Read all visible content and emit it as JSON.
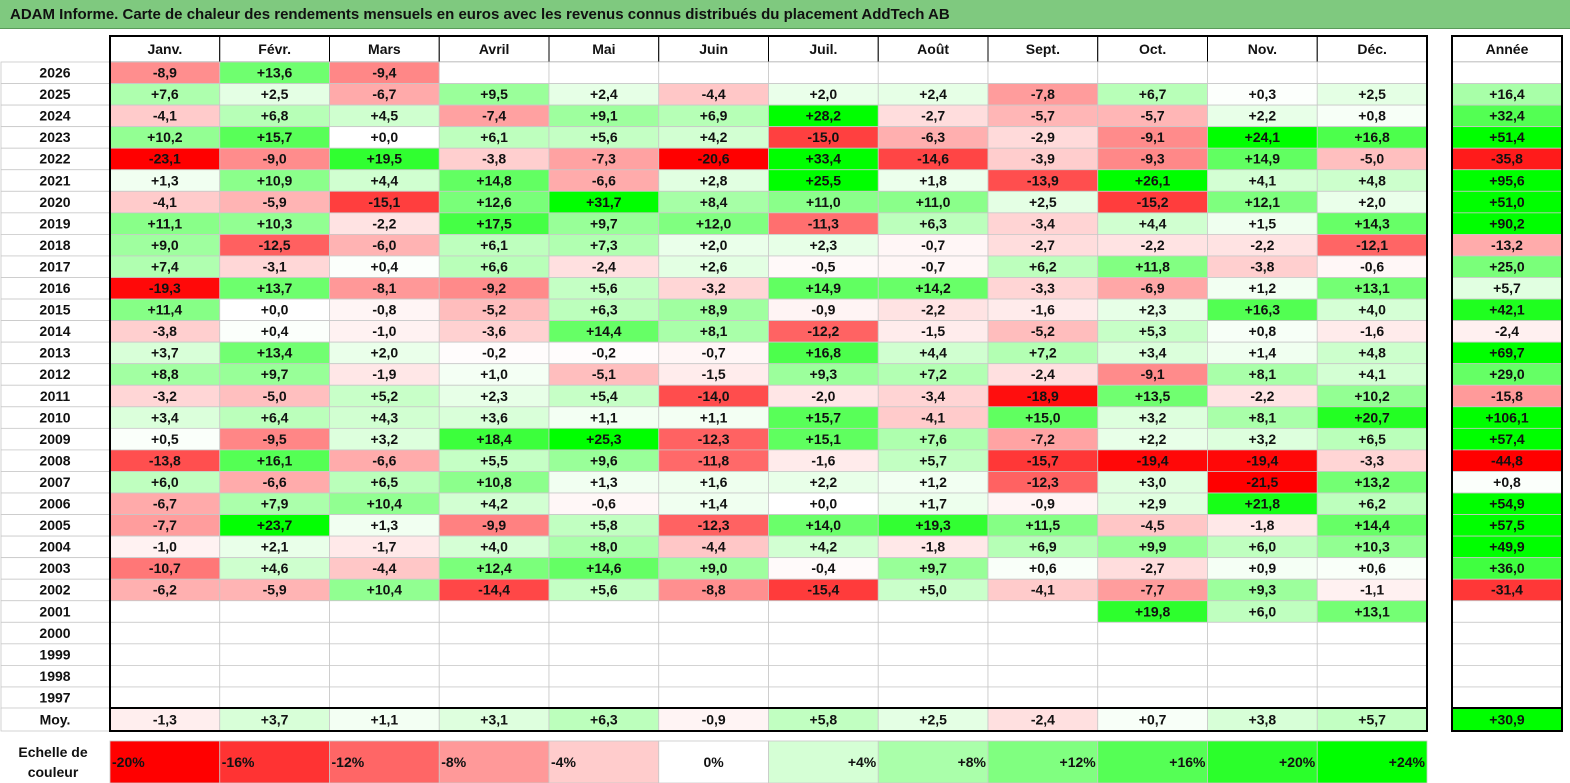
{
  "title": "ADAM Informe. Carte de chaleur des rendements mensuels en euros avec les revenus connus distribués du placement AddTech AB",
  "chart_data": {
    "type": "heatmap",
    "columns": [
      "Janv.",
      "Févr.",
      "Mars",
      "Avril",
      "Mai",
      "Juin",
      "Juil.",
      "Août",
      "Sept.",
      "Oct.",
      "Nov.",
      "Déc."
    ],
    "year_column_label": "Année",
    "rows": [
      {
        "year": "2026",
        "months": [
          "-8,9",
          "+13,6",
          "-9,4",
          null,
          null,
          null,
          null,
          null,
          null,
          null,
          null,
          null
        ],
        "annual": null
      },
      {
        "year": "2025",
        "months": [
          "+7,6",
          "+2,5",
          "-6,7",
          "+9,5",
          "+2,4",
          "-4,4",
          "+2,0",
          "+2,4",
          "-7,8",
          "+6,7",
          "+0,3",
          "+2,5"
        ],
        "annual": "+16,4"
      },
      {
        "year": "2024",
        "months": [
          "-4,1",
          "+6,8",
          "+4,5",
          "-7,4",
          "+9,1",
          "+6,9",
          "+28,2",
          "-2,7",
          "-5,7",
          "-5,7",
          "+2,2",
          "+0,8"
        ],
        "annual": "+32,4"
      },
      {
        "year": "2023",
        "months": [
          "+10,2",
          "+15,7",
          "+0,0",
          "+6,1",
          "+5,6",
          "+4,2",
          "-15,0",
          "-6,3",
          "-2,9",
          "-9,1",
          "+24,1",
          "+16,8"
        ],
        "annual": "+51,4"
      },
      {
        "year": "2022",
        "months": [
          "-23,1",
          "-9,0",
          "+19,5",
          "-3,8",
          "-7,3",
          "-20,6",
          "+33,4",
          "-14,6",
          "-3,9",
          "-9,3",
          "+14,9",
          "-5,0"
        ],
        "annual": "-35,8"
      },
      {
        "year": "2021",
        "months": [
          "+1,3",
          "+10,9",
          "+4,4",
          "+14,8",
          "-6,6",
          "+2,8",
          "+25,5",
          "+1,8",
          "-13,9",
          "+26,1",
          "+4,1",
          "+4,8"
        ],
        "annual": "+95,6"
      },
      {
        "year": "2020",
        "months": [
          "-4,1",
          "-5,9",
          "-15,1",
          "+12,6",
          "+31,7",
          "+8,4",
          "+11,0",
          "+11,0",
          "+2,5",
          "-15,2",
          "+12,1",
          "+2,0"
        ],
        "annual": "+51,0"
      },
      {
        "year": "2019",
        "months": [
          "+11,1",
          "+10,3",
          "-2,2",
          "+17,5",
          "+9,7",
          "+12,0",
          "-11,3",
          "+6,3",
          "-3,4",
          "+4,4",
          "+1,5",
          "+14,3"
        ],
        "annual": "+90,2"
      },
      {
        "year": "2018",
        "months": [
          "+9,0",
          "-12,5",
          "-6,0",
          "+6,1",
          "+7,3",
          "+2,0",
          "+2,3",
          "-0,7",
          "-2,7",
          "-2,2",
          "-2,2",
          "-12,1"
        ],
        "annual": "-13,2"
      },
      {
        "year": "2017",
        "months": [
          "+7,4",
          "-3,1",
          "+0,4",
          "+6,6",
          "-2,4",
          "+2,6",
          "-0,5",
          "-0,7",
          "+6,2",
          "+11,8",
          "-3,8",
          "-0,6"
        ],
        "annual": "+25,0"
      },
      {
        "year": "2016",
        "months": [
          "-19,3",
          "+13,7",
          "-8,1",
          "-9,2",
          "+5,6",
          "-3,2",
          "+14,9",
          "+14,2",
          "-3,3",
          "-6,9",
          "+1,2",
          "+13,1"
        ],
        "annual": "+5,7"
      },
      {
        "year": "2015",
        "months": [
          "+11,4",
          "+0,0",
          "-0,8",
          "-5,2",
          "+6,3",
          "+8,9",
          "-0,9",
          "-2,2",
          "-1,6",
          "+2,3",
          "+16,3",
          "+4,0"
        ],
        "annual": "+42,1"
      },
      {
        "year": "2014",
        "months": [
          "-3,8",
          "+0,4",
          "-1,0",
          "-3,6",
          "+14,4",
          "+8,1",
          "-12,2",
          "-1,5",
          "-5,2",
          "+5,3",
          "+0,8",
          "-1,6"
        ],
        "annual": "-2,4"
      },
      {
        "year": "2013",
        "months": [
          "+3,7",
          "+13,4",
          "+2,0",
          "-0,2",
          "-0,2",
          "-0,7",
          "+16,8",
          "+4,4",
          "+7,2",
          "+3,4",
          "+1,4",
          "+4,8"
        ],
        "annual": "+69,7"
      },
      {
        "year": "2012",
        "months": [
          "+8,8",
          "+9,7",
          "-1,9",
          "+1,0",
          "-5,1",
          "-1,5",
          "+9,3",
          "+7,2",
          "-2,4",
          "-9,1",
          "+8,1",
          "+4,1"
        ],
        "annual": "+29,0"
      },
      {
        "year": "2011",
        "months": [
          "-3,2",
          "-5,0",
          "+5,2",
          "+2,3",
          "+5,4",
          "-14,0",
          "-2,0",
          "-3,4",
          "-18,9",
          "+13,5",
          "-2,2",
          "+10,2"
        ],
        "annual": "-15,8"
      },
      {
        "year": "2010",
        "months": [
          "+3,4",
          "+6,4",
          "+4,3",
          "+3,6",
          "+1,1",
          "+1,1",
          "+15,7",
          "-4,1",
          "+15,0",
          "+3,2",
          "+8,1",
          "+20,7"
        ],
        "annual": "+106,1"
      },
      {
        "year": "2009",
        "months": [
          "+0,5",
          "-9,5",
          "+3,2",
          "+18,4",
          "+25,3",
          "-12,3",
          "+15,1",
          "+7,6",
          "-7,2",
          "+2,2",
          "+3,2",
          "+6,5"
        ],
        "annual": "+57,4"
      },
      {
        "year": "2008",
        "months": [
          "-13,8",
          "+16,1",
          "-6,6",
          "+5,5",
          "+9,6",
          "-11,8",
          "-1,6",
          "+5,7",
          "-15,7",
          "-19,4",
          "-19,4",
          "-3,3"
        ],
        "annual": "-44,8"
      },
      {
        "year": "2007",
        "months": [
          "+6,0",
          "-6,6",
          "+6,5",
          "+10,8",
          "+1,3",
          "+1,6",
          "+2,2",
          "+1,2",
          "-12,3",
          "+3,0",
          "-21,5",
          "+13,2"
        ],
        "annual": "+0,8"
      },
      {
        "year": "2006",
        "months": [
          "-6,7",
          "+7,9",
          "+10,4",
          "+4,2",
          "-0,6",
          "+1,4",
          "+0,0",
          "+1,7",
          "-0,9",
          "+2,9",
          "+21,8",
          "+6,2"
        ],
        "annual": "+54,9"
      },
      {
        "year": "2005",
        "months": [
          "-7,7",
          "+23,7",
          "+1,3",
          "-9,9",
          "+5,8",
          "-12,3",
          "+14,0",
          "+19,3",
          "+11,5",
          "-4,5",
          "-1,8",
          "+14,4"
        ],
        "annual": "+57,5"
      },
      {
        "year": "2004",
        "months": [
          "-1,0",
          "+2,1",
          "-1,7",
          "+4,0",
          "+8,0",
          "-4,4",
          "+4,2",
          "-1,8",
          "+6,9",
          "+9,9",
          "+6,0",
          "+10,3"
        ],
        "annual": "+49,9"
      },
      {
        "year": "2003",
        "months": [
          "-10,7",
          "+4,6",
          "-4,4",
          "+12,4",
          "+14,6",
          "+9,0",
          "-0,4",
          "+9,7",
          "+0,6",
          "-2,7",
          "+0,9",
          "+0,6"
        ],
        "annual": "+36,0"
      },
      {
        "year": "2002",
        "months": [
          "-6,2",
          "-5,9",
          "+10,4",
          "-14,4",
          "+5,6",
          "-8,8",
          "-15,4",
          "+5,0",
          "-4,1",
          "-7,7",
          "+9,3",
          "-1,1"
        ],
        "annual": "-31,4"
      },
      {
        "year": "2001",
        "months": [
          null,
          null,
          null,
          null,
          null,
          null,
          null,
          null,
          null,
          "+19,8",
          "+6,0",
          "+13,1"
        ],
        "annual": null
      },
      {
        "year": "2000",
        "months": [
          null,
          null,
          null,
          null,
          null,
          null,
          null,
          null,
          null,
          null,
          null,
          null
        ],
        "annual": null
      },
      {
        "year": "1999",
        "months": [
          null,
          null,
          null,
          null,
          null,
          null,
          null,
          null,
          null,
          null,
          null,
          null
        ],
        "annual": null
      },
      {
        "year": "1998",
        "months": [
          null,
          null,
          null,
          null,
          null,
          null,
          null,
          null,
          null,
          null,
          null,
          null
        ],
        "annual": null
      },
      {
        "year": "1997",
        "months": [
          null,
          null,
          null,
          null,
          null,
          null,
          null,
          null,
          null,
          null,
          null,
          null
        ],
        "annual": null
      }
    ],
    "average": {
      "label": "Moy.",
      "months": [
        "-1,3",
        "+3,7",
        "+1,1",
        "+3,1",
        "+6,3",
        "-0,9",
        "+5,8",
        "+2,5",
        "-2,4",
        "+0,7",
        "+3,8",
        "+5,7"
      ],
      "annual": "+30,9"
    },
    "scale": {
      "label_line1": "Echelle de",
      "label_line2": "couleur",
      "stops": [
        {
          "label": "-20%",
          "value": -20
        },
        {
          "label": "-16%",
          "value": -16
        },
        {
          "label": "-12%",
          "value": -12
        },
        {
          "label": "-8%",
          "value": -8
        },
        {
          "label": "-4%",
          "value": -4
        },
        {
          "label": "0%",
          "value": 0
        },
        {
          "label": "+4%",
          "value": 4
        },
        {
          "label": "+8%",
          "value": 8
        },
        {
          "label": "+12%",
          "value": 12
        },
        {
          "label": "+16%",
          "value": 16
        },
        {
          "label": "+20%",
          "value": 20
        },
        {
          "label": "+24%",
          "value": 24
        }
      ]
    },
    "colors": {
      "negative": "#ff0000",
      "neutral": "#ffffff",
      "positive": "#00ff00",
      "title_bg": "#7fc97f"
    }
  }
}
